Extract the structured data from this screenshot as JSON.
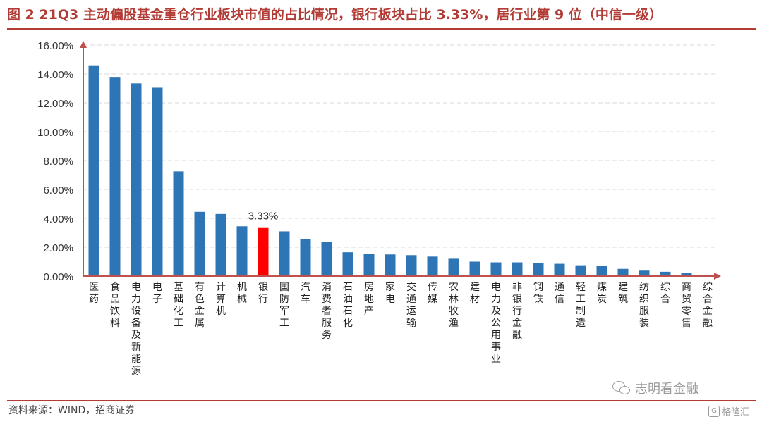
{
  "title": "图 2 21Q3 主动偏股基金重仓行业板块市值的占比情况，银行板块占比 3.33%，居行业第 9 位（中信一级）",
  "source": "资料来源：WIND，招商证券",
  "watermark": {
    "wechat": "志明看金融",
    "site": "格隆汇"
  },
  "colors": {
    "title": "#b23c35",
    "bar": "#2e75b6",
    "highlight": "#ff0000",
    "grid": "#d9d9d9",
    "axis": "#c0504d"
  },
  "chart_data": {
    "type": "bar",
    "title": "",
    "xlabel": "",
    "ylabel": "",
    "ylim": [
      0,
      16
    ],
    "y_ticks": [
      "0.00%",
      "2.00%",
      "4.00%",
      "6.00%",
      "8.00%",
      "10.00%",
      "12.00%",
      "14.00%",
      "16.00%"
    ],
    "grid": true,
    "highlight_index": 8,
    "annotation": "3.33%",
    "categories": [
      "医药",
      "食品饮料",
      "电力设备及新能源",
      "电子",
      "基础化工",
      "有色金属",
      "计算机",
      "机械",
      "银行",
      "国防军工",
      "汽车",
      "消费者服务",
      "石油石化",
      "房地产",
      "家电",
      "交通运输",
      "传媒",
      "农林牧渔",
      "建材",
      "电力及公用事业",
      "非银行金融",
      "钢铁",
      "通信",
      "轻工制造",
      "煤炭",
      "建筑",
      "纺织服装",
      "综合",
      "商贸零售",
      "综合金融"
    ],
    "values": [
      14.6,
      13.75,
      13.35,
      13.05,
      7.25,
      4.45,
      4.3,
      3.45,
      3.33,
      3.1,
      2.55,
      2.35,
      1.65,
      1.55,
      1.5,
      1.45,
      1.35,
      1.2,
      1.0,
      0.95,
      0.95,
      0.88,
      0.85,
      0.75,
      0.7,
      0.5,
      0.38,
      0.3,
      0.22,
      0.1
    ]
  }
}
